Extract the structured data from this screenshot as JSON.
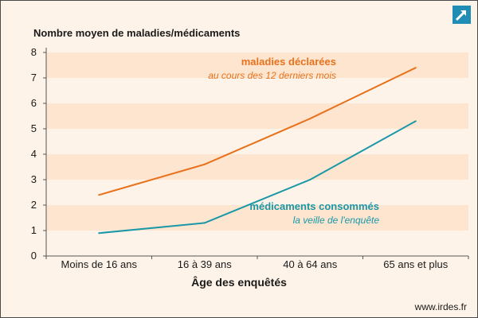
{
  "chart_data": {
    "type": "line",
    "ylabel": "Nombre moyen de maladies/médicaments",
    "xlabel": "Âge des enquêtés",
    "categories": [
      "Moins de 16 ans",
      "16 à 39 ans",
      "40 à 64 ans",
      "65 ans et plus"
    ],
    "ylim": [
      0,
      8
    ],
    "yticks": [
      0,
      1,
      2,
      3,
      4,
      5,
      6,
      7,
      8
    ],
    "grid": "alternating horizontal bands",
    "series": [
      {
        "name": "maladies déclarées",
        "subtitle": "au cours des 12 derniers mois",
        "color": "#e8721c",
        "values": [
          2.4,
          3.6,
          5.4,
          7.4
        ]
      },
      {
        "name": "médicaments consommés",
        "subtitle": "la veille de l'enquête",
        "color": "#1a98a8",
        "values": [
          0.9,
          1.3,
          3.0,
          5.3
        ]
      }
    ]
  },
  "source": "www.irdes.fr",
  "colors": {
    "band": "#fde5cf",
    "background": "#fdf3e8",
    "axis": "#555555",
    "logo": "#1f8db4"
  },
  "logo_icon": "external-link-arrow-icon"
}
